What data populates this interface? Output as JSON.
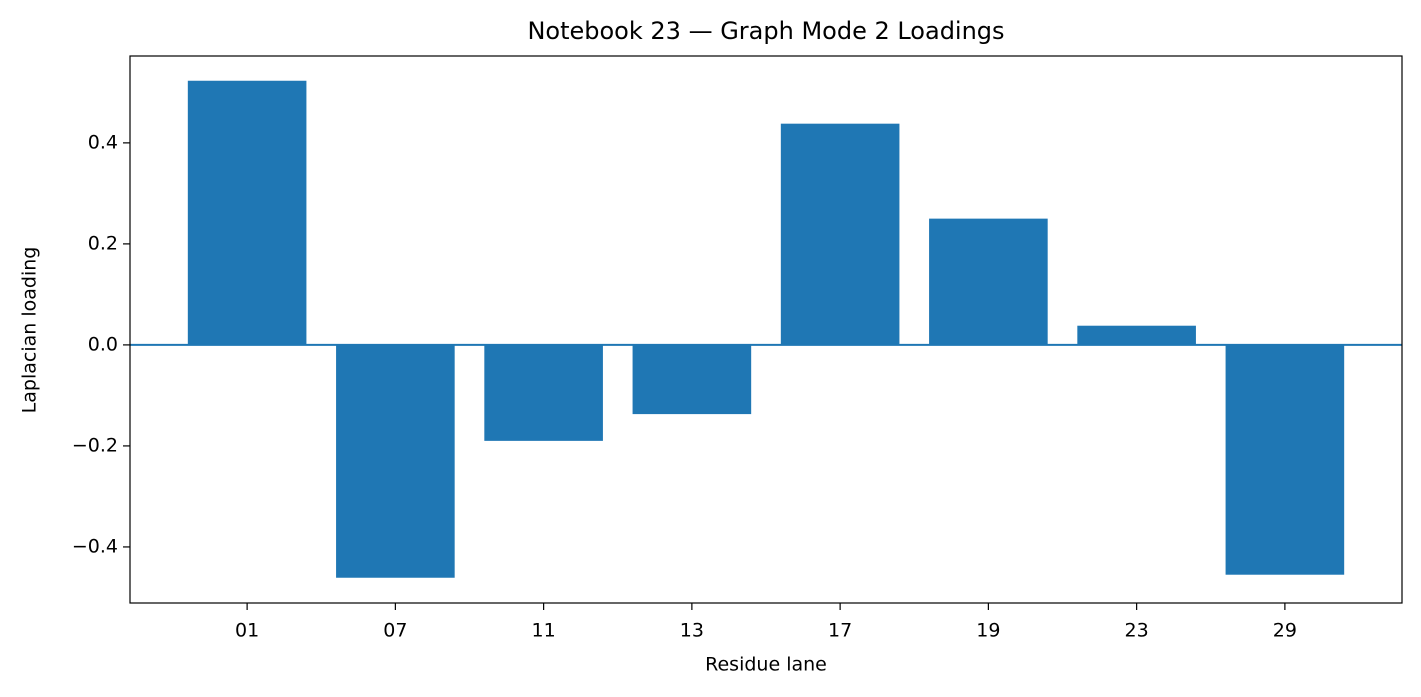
{
  "chart_data": {
    "type": "bar",
    "title": "Notebook 23 — Graph Mode 2 Loadings",
    "x_label": "Residue lane",
    "y_label": "Laplacian loading",
    "categories": [
      "01",
      "07",
      "11",
      "13",
      "17",
      "19",
      "23",
      "29"
    ],
    "values": [
      0.523,
      -0.461,
      -0.19,
      -0.137,
      0.438,
      0.25,
      0.038,
      -0.455
    ],
    "color": "#1f77b4",
    "ylim": [
      -0.511,
      0.572
    ],
    "yticks": [
      {
        "value": -0.4,
        "label": "−0.4"
      },
      {
        "value": -0.2,
        "label": "−0.2"
      },
      {
        "value": 0,
        "label": "0.0"
      },
      0.2,
      0.4
    ],
    "grid": false
  }
}
